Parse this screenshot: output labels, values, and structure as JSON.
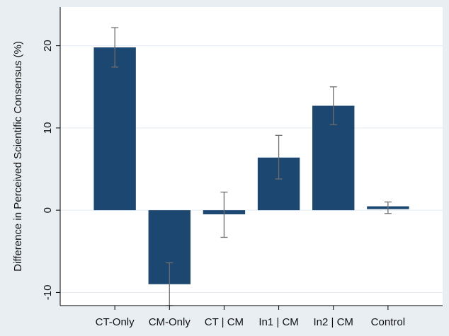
{
  "chart_data": {
    "type": "bar",
    "title": "",
    "xlabel": "",
    "ylabel": "Difference in Perceived Scientific Consensus (%)",
    "categories": [
      "CT-Only",
      "CM-Only",
      "CT | CM",
      "In1 | CM",
      "In2 | CM",
      "Control"
    ],
    "values": [
      19.8,
      -9.0,
      -0.5,
      6.4,
      12.7,
      0.3
    ],
    "error_low": [
      17.4,
      -11.6,
      -3.3,
      3.8,
      10.4,
      -0.4
    ],
    "error_high": [
      22.2,
      -6.4,
      2.2,
      9.1,
      15.0,
      1.0
    ],
    "yticks": [
      -10,
      0,
      10,
      20
    ],
    "ytick_labels": [
      "-10",
      "0",
      "10",
      "20"
    ],
    "ylim": [
      -11.6,
      24.7
    ],
    "grid": true,
    "colors": {
      "bar": "#1b4770",
      "error_bar": "#6e6e6e",
      "plot_bg": "#ffffff",
      "page_bg": "#e9eef3",
      "grid": "#e4ecf2"
    }
  }
}
